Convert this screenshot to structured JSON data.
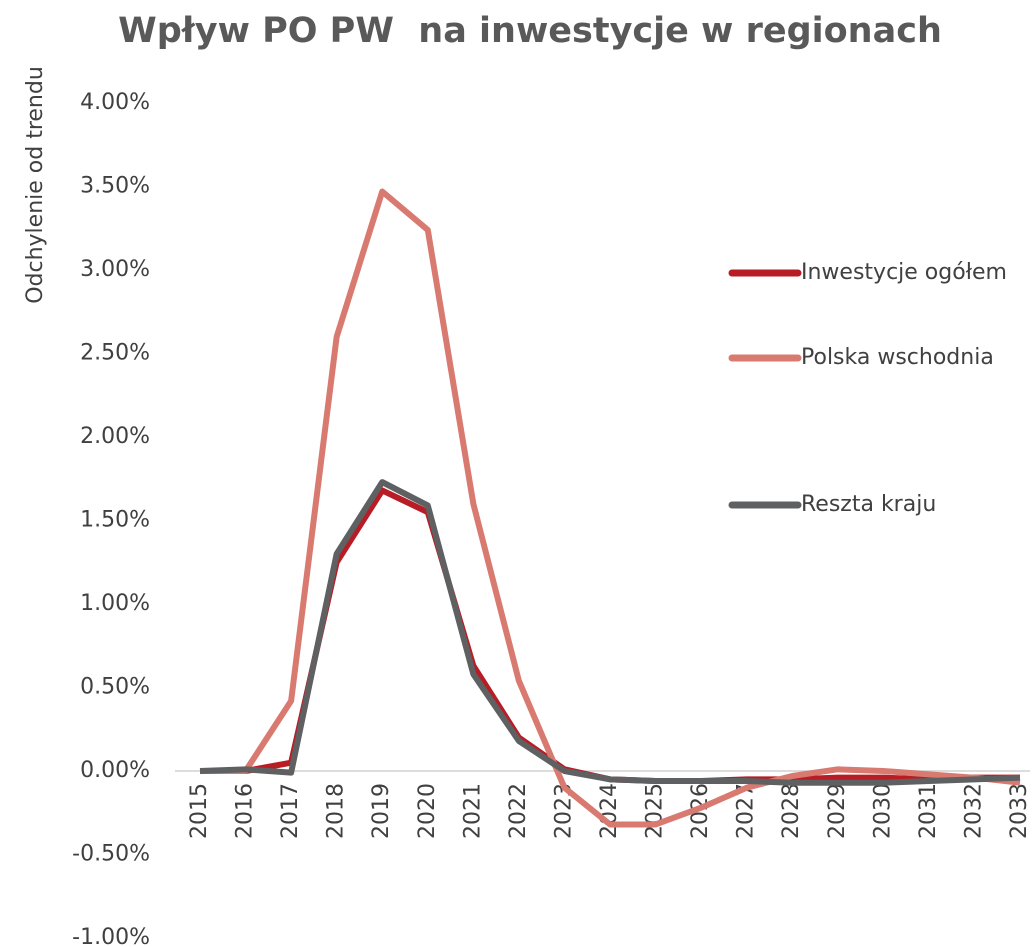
{
  "chart_data": {
    "type": "line",
    "title": "Wpływ PO PW  na inwestycje w regionach",
    "y_label": "Odchylenie od trendu",
    "categories": [
      "2015",
      "2016",
      "2017",
      "2018",
      "2019",
      "2020",
      "2021",
      "2022",
      "2023",
      "2024",
      "2025",
      "2026",
      "2027",
      "2028",
      "2029",
      "2030",
      "2031",
      "2032",
      "2033"
    ],
    "series": [
      {
        "name": "Inwestycje ogółem",
        "color": "#b81c25",
        "values": [
          0,
          0,
          0.05,
          1.25,
          1.68,
          1.55,
          0.63,
          0.2,
          0.01,
          -0.05,
          -0.06,
          -0.06,
          -0.05,
          -0.05,
          -0.04,
          -0.04,
          -0.05,
          -0.04,
          -0.04
        ]
      },
      {
        "name": "Polska wschodnia",
        "color": "#d97a70",
        "values": [
          0,
          0,
          0.42,
          2.6,
          3.47,
          3.24,
          1.6,
          0.54,
          -0.1,
          -0.32,
          -0.32,
          -0.22,
          -0.1,
          -0.03,
          0.01,
          0,
          -0.02,
          -0.04,
          -0.07
        ]
      },
      {
        "name": "Reszta kraju",
        "color": "#5f6062",
        "values": [
          0,
          0.01,
          -0.01,
          1.3,
          1.73,
          1.59,
          0.58,
          0.18,
          0,
          -0.05,
          -0.06,
          -0.06,
          -0.06,
          -0.07,
          -0.07,
          -0.07,
          -0.06,
          -0.05,
          -0.04
        ]
      }
    ],
    "ylim": [
      -1,
      4
    ],
    "yticks": [
      {
        "value": -1,
        "label": "-1.00%"
      },
      {
        "value": -0.5,
        "label": "-0.50%"
      },
      {
        "value": 0,
        "label": "0.00%"
      },
      {
        "value": 0.5,
        "label": "0.50%"
      },
      {
        "value": 1,
        "label": "1.00%"
      },
      {
        "value": 1.5,
        "label": "1.50%"
      },
      {
        "value": 2,
        "label": "2.00%"
      },
      {
        "value": 2.5,
        "label": "2.50%"
      },
      {
        "value": 3,
        "label": "3.00%"
      },
      {
        "value": 3.5,
        "label": "3.50%"
      },
      {
        "value": 4,
        "label": "4.00%"
      }
    ],
    "grid": false,
    "legend": "right"
  }
}
